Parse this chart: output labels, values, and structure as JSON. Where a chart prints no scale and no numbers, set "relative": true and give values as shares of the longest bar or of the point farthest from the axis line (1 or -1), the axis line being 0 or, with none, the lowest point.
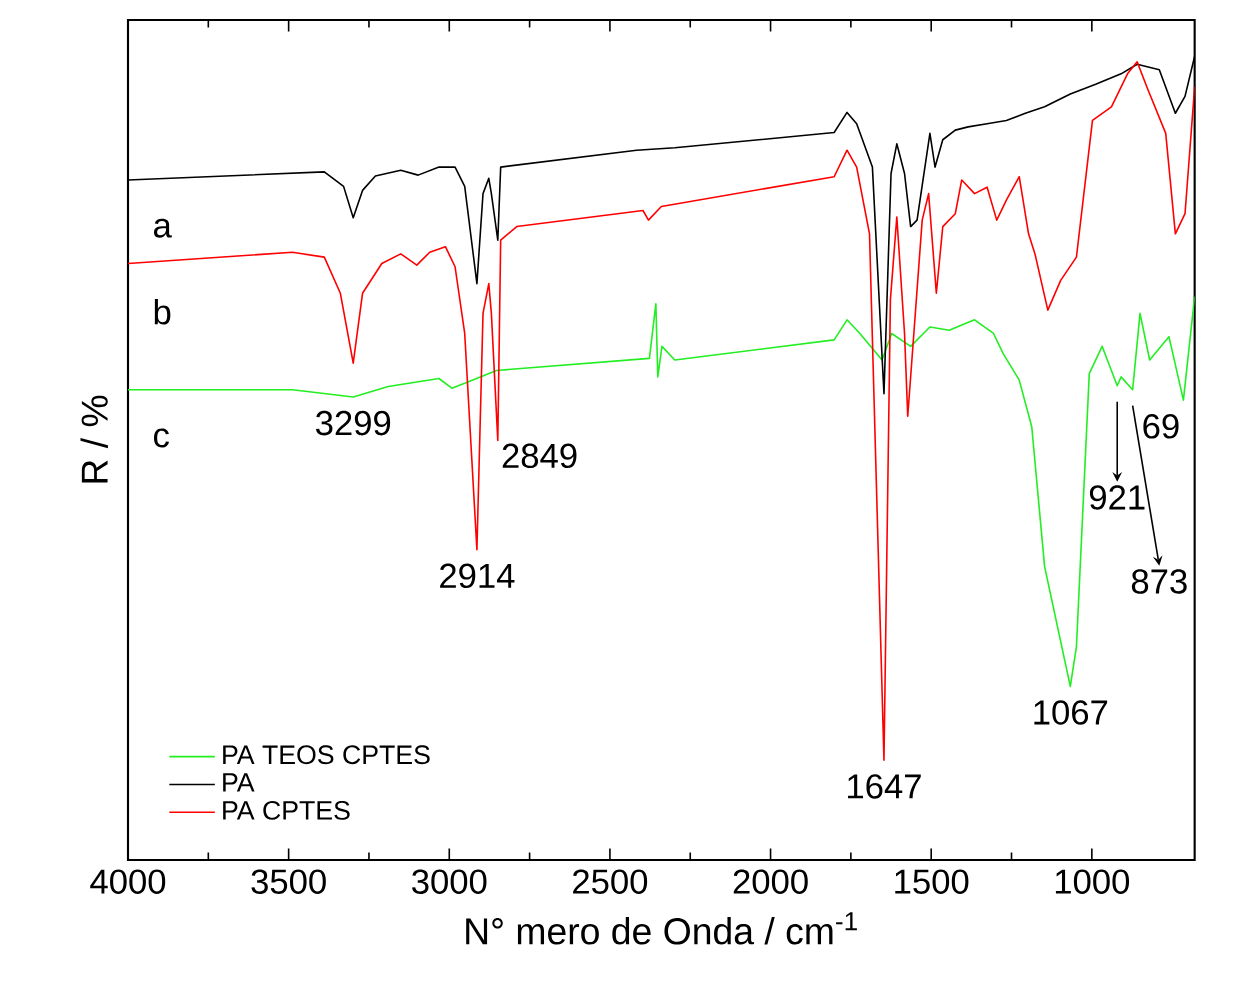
{
  "chart_data": {
    "type": "line",
    "relative": true,
    "xlabel": "N° mero de Onda / cm$^{-1}$",
    "ylabel": "R / %",
    "xlim": [
      4000,
      680
    ],
    "xticks": [
      4000,
      3500,
      3000,
      2500,
      2000,
      1500,
      1000
    ],
    "tick_labels": "x",
    "legend": "bottom left",
    "marker": "none",
    "line_style": "solid",
    "grid": false,
    "series": [
      {
        "name": "PA TEOS CPTES",
        "color": "#22ee22",
        "x": [
          4000,
          3686,
          3488,
          3299,
          3190,
          3032,
          2992,
          2952,
          2853,
          2377,
          2357,
          2351,
          2338,
          2298,
          1802,
          1762,
          1722,
          1653,
          1623,
          1564,
          1504,
          1444,
          1365,
          1306,
          1276,
          1226,
          1187,
          1147,
          1067,
          1048,
          1008,
          968,
          921,
          909,
          873,
          850,
          820,
          760,
          715,
          680
        ],
        "values": [
          0.585,
          0.585,
          0.585,
          0.576,
          0.589,
          0.599,
          0.587,
          0.593,
          0.609,
          0.624,
          0.692,
          0.601,
          0.639,
          0.622,
          0.647,
          0.672,
          0.655,
          0.622,
          0.655,
          0.639,
          0.663,
          0.659,
          0.672,
          0.655,
          0.63,
          0.597,
          0.539,
          0.365,
          0.216,
          0.265,
          0.605,
          0.639,
          0.59,
          0.601,
          0.585,
          0.68,
          0.622,
          0.651,
          0.572,
          0.701
        ]
      },
      {
        "name": "PA",
        "color": "#000000",
        "x": [
          4000,
          3389,
          3329,
          3299,
          3270,
          3230,
          3151,
          3097,
          3032,
          2982,
          2952,
          2914,
          2895,
          2877,
          2869,
          2849,
          2840,
          2417,
          2298,
          1802,
          1762,
          1732,
          1683,
          1647,
          1625,
          1607,
          1583,
          1564,
          1544,
          1504,
          1488,
          1464,
          1425,
          1385,
          1326,
          1266,
          1207,
          1147,
          1067,
          988,
          909,
          859,
          790,
          740,
          710,
          680
        ],
        "values": [
          0.846,
          0.856,
          0.838,
          0.799,
          0.833,
          0.851,
          0.858,
          0.852,
          0.862,
          0.862,
          0.838,
          0.717,
          0.829,
          0.848,
          0.829,
          0.771,
          0.862,
          0.883,
          0.886,
          0.905,
          0.93,
          0.916,
          0.862,
          0.58,
          0.854,
          0.891,
          0.854,
          0.788,
          0.796,
          0.904,
          0.862,
          0.896,
          0.908,
          0.912,
          0.916,
          0.92,
          0.929,
          0.937,
          0.953,
          0.965,
          0.978,
          0.99,
          0.983,
          0.929,
          0.95,
          1.0
        ]
      },
      {
        "name": "PA CPTES",
        "color": "#ff0000",
        "x": [
          4000,
          3488,
          3389,
          3339,
          3299,
          3270,
          3210,
          3151,
          3101,
          3061,
          3012,
          2982,
          2952,
          2914,
          2895,
          2877,
          2869,
          2849,
          2840,
          2790,
          2397,
          2380,
          2340,
          1802,
          1762,
          1732,
          1692,
          1647,
          1627,
          1607,
          1583,
          1573,
          1554,
          1528,
          1508,
          1484,
          1464,
          1425,
          1405,
          1365,
          1326,
          1296,
          1266,
          1226,
          1197,
          1177,
          1137,
          1097,
          1048,
          998,
          939,
          889,
          859,
          829,
          770,
          740,
          710,
          680
        ],
        "values": [
          0.742,
          0.756,
          0.75,
          0.705,
          0.618,
          0.705,
          0.742,
          0.754,
          0.74,
          0.756,
          0.763,
          0.738,
          0.655,
          0.386,
          0.68,
          0.717,
          0.68,
          0.522,
          0.771,
          0.788,
          0.808,
          0.796,
          0.813,
          0.85,
          0.883,
          0.862,
          0.779,
          0.124,
          0.697,
          0.8,
          0.655,
          0.552,
          0.655,
          0.796,
          0.829,
          0.705,
          0.788,
          0.804,
          0.846,
          0.829,
          0.837,
          0.796,
          0.821,
          0.85,
          0.779,
          0.754,
          0.684,
          0.721,
          0.75,
          0.92,
          0.937,
          0.978,
          0.993,
          0.962,
          0.904,
          0.779,
          0.804,
          0.962
        ]
      }
    ],
    "annotations": [
      "a",
      "b",
      "c",
      {
        "text": "3299",
        "x": 3299,
        "y": 0.576
      },
      {
        "text": "2914",
        "x": 2914,
        "y": 0.386
      },
      {
        "text": "2849",
        "x": 2849,
        "y": 0.522
      },
      {
        "text": "1647",
        "x": 1647,
        "y": 0.124
      },
      {
        "text": "1067",
        "x": 1067,
        "y": 0.216
      },
      {
        "text": "921",
        "x": 921,
        "y": 0.59
      },
      {
        "text": "873",
        "x": 873,
        "y": 0.585
      },
      {
        "text": "69",
        "x": 715,
        "y": 0.572
      }
    ]
  }
}
